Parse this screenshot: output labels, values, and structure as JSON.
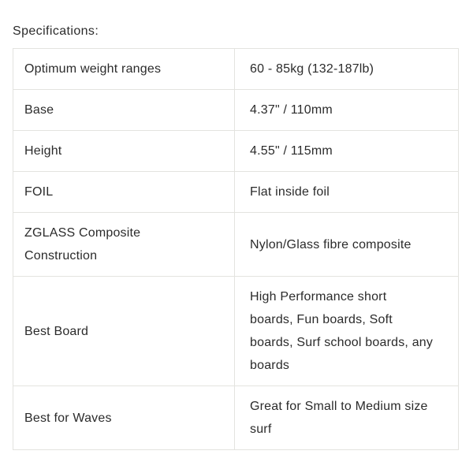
{
  "page": {
    "heading": "Specifications:"
  },
  "table": {
    "rows": [
      {
        "label": "Optimum weight ranges",
        "value": "60 - 85kg (132-187lb)"
      },
      {
        "label": "Base",
        "value": "4.37\" / 110mm"
      },
      {
        "label": "Height",
        "value": "4.55\" / 115mm"
      },
      {
        "label": "FOIL",
        "value": "Flat inside foil"
      },
      {
        "label": "ZGLASS Composite\nConstruction",
        "value": "Nylon/Glass fibre composite"
      },
      {
        "label": "Best Board",
        "value": "High Performance short\nboards, Fun boards, Soft\nboards, Surf school boards, any\nboards"
      },
      {
        "label": "Best for Waves",
        "value": "Great for Small to Medium size\nsurf"
      }
    ]
  },
  "colors": {
    "text": "#2b2b2b",
    "border": "#e3e3df",
    "background": "#ffffff"
  }
}
